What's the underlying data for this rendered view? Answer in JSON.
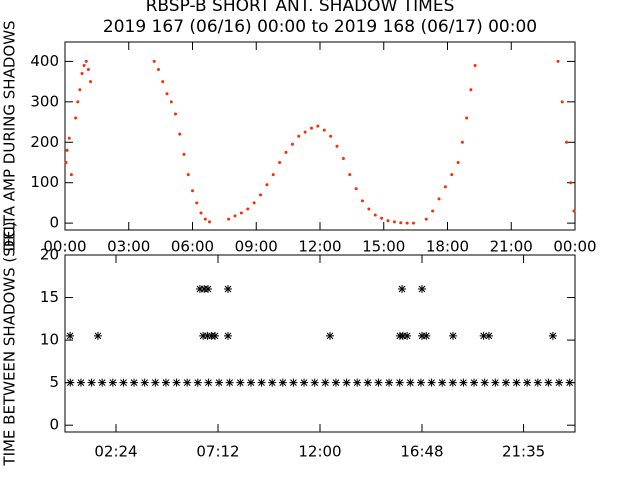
{
  "chart_data": [
    {
      "type": "scatter",
      "title": "RBSP-B SHORT ANT. SHADOW TIMES",
      "subtitle": "2019 167 (06/16) 00:00 to 2019 168 (06/17) 00:00",
      "y_label": "DELTA AMP DURING SHADOWS",
      "color": "#ff2a00",
      "marker": "dot",
      "x": [
        0.05,
        0.1,
        0.2,
        0.3,
        0.5,
        0.6,
        0.7,
        0.8,
        0.9,
        1.0,
        1.1,
        1.2,
        4.2,
        4.4,
        4.6,
        4.8,
        5.0,
        5.2,
        5.4,
        5.6,
        5.8,
        6.0,
        6.2,
        6.4,
        6.6,
        6.8,
        7.7,
        8.0,
        8.3,
        8.6,
        8.9,
        9.2,
        9.5,
        9.8,
        10.1,
        10.4,
        10.7,
        11.0,
        11.3,
        11.6,
        11.9,
        12.2,
        12.5,
        12.8,
        13.1,
        13.4,
        13.7,
        14.0,
        14.3,
        14.6,
        14.9,
        15.2,
        15.5,
        15.8,
        16.1,
        16.4,
        17.0,
        17.3,
        17.6,
        17.9,
        18.2,
        18.5,
        18.7,
        18.9,
        19.1,
        19.3,
        23.2,
        23.4,
        23.6,
        23.8,
        23.95
      ],
      "values": [
        150,
        180,
        210,
        120,
        260,
        300,
        330,
        370,
        390,
        400,
        380,
        350,
        400,
        380,
        350,
        320,
        300,
        270,
        220,
        170,
        120,
        80,
        50,
        25,
        10,
        3,
        10,
        18,
        25,
        35,
        50,
        70,
        95,
        120,
        150,
        175,
        195,
        215,
        225,
        235,
        240,
        230,
        215,
        190,
        160,
        120,
        85,
        55,
        35,
        20,
        12,
        6,
        3,
        1,
        0,
        0,
        10,
        30,
        60,
        90,
        120,
        150,
        200,
        260,
        330,
        390,
        400,
        300,
        200,
        100,
        30
      ],
      "xlim": [
        0,
        24
      ],
      "ylim": [
        -17,
        448
      ],
      "xticks": [
        {
          "value": 0,
          "label": "00:00"
        },
        {
          "value": 3,
          "label": "03:00"
        },
        {
          "value": 6,
          "label": "06:00"
        },
        {
          "value": 9,
          "label": "09:00"
        },
        {
          "value": 12,
          "label": "12:00"
        },
        {
          "value": 15,
          "label": "15:00"
        },
        {
          "value": 18,
          "label": "18:00"
        },
        {
          "value": 21,
          "label": "21:00"
        },
        {
          "value": 24,
          "label": "00:00"
        }
      ],
      "yticks": [
        0,
        100,
        200,
        300,
        400
      ]
    },
    {
      "type": "scatter",
      "y_label": "TIME BETWEEN SHADOWS (SEC)",
      "color": "#000000",
      "marker": "asterisk",
      "x": [
        0.25,
        0.75,
        1.25,
        1.75,
        2.25,
        2.75,
        3.25,
        3.75,
        4.25,
        4.75,
        5.25,
        5.75,
        6.25,
        6.75,
        7.25,
        7.75,
        8.25,
        8.75,
        9.25,
        9.75,
        10.25,
        10.75,
        11.25,
        11.75,
        12.25,
        12.75,
        13.25,
        13.75,
        14.25,
        14.75,
        15.25,
        15.75,
        16.25,
        16.75,
        17.25,
        17.75,
        18.25,
        18.75,
        19.25,
        19.75,
        20.25,
        20.75,
        21.25,
        21.75,
        22.25,
        22.75,
        23.25,
        23.75,
        0.24,
        1.55,
        6.5,
        6.7,
        6.9,
        7.06,
        7.67,
        12.47,
        15.76,
        15.9,
        16.1,
        16.8,
        17.0,
        18.26,
        19.7,
        19.95,
        22.96,
        6.35,
        6.55,
        6.73,
        7.67,
        15.86,
        16.8
      ],
      "values": [
        5,
        5,
        5,
        5,
        5,
        5,
        5,
        5,
        5,
        5,
        5,
        5,
        5,
        5,
        5,
        5,
        5,
        5,
        5,
        5,
        5,
        5,
        5,
        5,
        5,
        5,
        5,
        5,
        5,
        5,
        5,
        5,
        5,
        5,
        5,
        5,
        5,
        5,
        5,
        5,
        5,
        5,
        5,
        5,
        5,
        5,
        5,
        5,
        10.5,
        10.5,
        10.5,
        10.5,
        10.5,
        10.5,
        10.5,
        10.5,
        10.5,
        10.5,
        10.5,
        10.5,
        10.5,
        10.5,
        10.5,
        10.5,
        10.5,
        16,
        16,
        16,
        16,
        16,
        16
      ],
      "xlim": [
        0,
        24
      ],
      "ylim": [
        -0.8,
        20
      ],
      "xticks": [
        {
          "value": 2.4,
          "label": "02:24"
        },
        {
          "value": 7.2,
          "label": "07:12"
        },
        {
          "value": 12,
          "label": "12:00"
        },
        {
          "value": 16.8,
          "label": "16:48"
        },
        {
          "value": 21.58,
          "label": "21:35"
        }
      ],
      "yticks": [
        0,
        5,
        10,
        15,
        20
      ]
    }
  ]
}
